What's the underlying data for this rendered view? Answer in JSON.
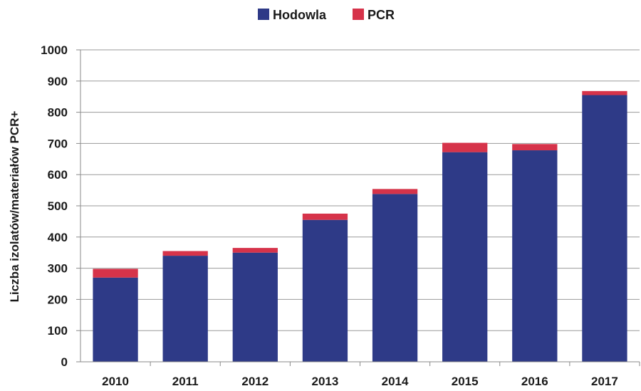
{
  "chart_data": {
    "type": "bar",
    "stacked": true,
    "title": "",
    "xlabel": "",
    "ylabel": "Liczba izolatów/materiałów PCR+",
    "categories": [
      "2010",
      "2011",
      "2012",
      "2013",
      "2014",
      "2015",
      "2016",
      "2017"
    ],
    "series": [
      {
        "name": "Hodowla",
        "color": "#2e3a87",
        "values": [
          270,
          340,
          350,
          455,
          538,
          672,
          678,
          855
        ]
      },
      {
        "name": "PCR",
        "color": "#d6334a",
        "values": [
          28,
          15,
          15,
          20,
          16,
          30,
          20,
          13
        ]
      }
    ],
    "ylim": [
      0,
      1000
    ],
    "yticks": [
      0,
      100,
      200,
      300,
      400,
      500,
      600,
      700,
      800,
      900,
      1000
    ],
    "grid": true,
    "legend_position": "top-center"
  }
}
